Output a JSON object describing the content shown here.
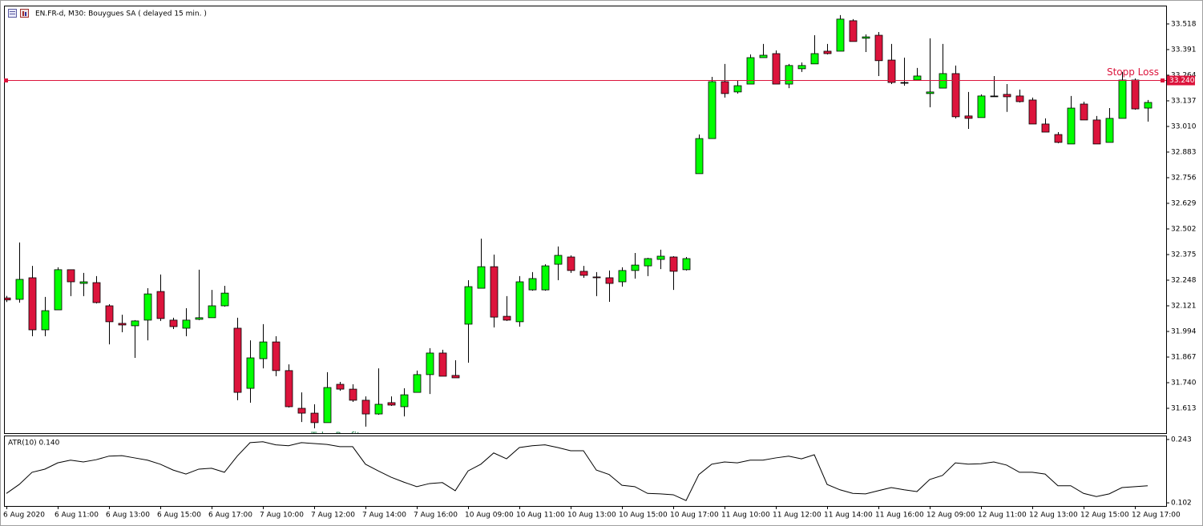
{
  "chart_data": [
    {
      "type": "candlestick",
      "title": "EN.FR-d, M30:  Bouygues SA ( delayed 15 min. )",
      "categories": [
        "6 Aug 2020",
        null,
        null,
        null,
        "6 Aug 11:00",
        null,
        null,
        null,
        "6 Aug 13:00",
        null,
        null,
        null,
        "6 Aug 15:00",
        null,
        null,
        null,
        "6 Aug 17:00",
        null,
        null,
        null,
        "7 Aug 10:00",
        null,
        null,
        null,
        "7 Aug 12:00",
        null,
        null,
        null,
        "7 Aug 14:00",
        null,
        null,
        null,
        "7 Aug 16:00",
        null,
        null,
        null,
        "10 Aug 09:00",
        null,
        null,
        null,
        "10 Aug 11:00",
        null,
        null,
        null,
        "10 Aug 13:00",
        null,
        null,
        null,
        "10 Aug 15:00",
        null,
        null,
        null,
        "10 Aug 17:00",
        null,
        null,
        null,
        "11 Aug 10:00",
        null,
        null,
        null,
        "11 Aug 12:00",
        null,
        null,
        null,
        "11 Aug 14:00",
        null,
        null,
        null,
        "11 Aug 16:00",
        null,
        null,
        null,
        "12 Aug 09:00",
        null,
        null,
        null,
        "12 Aug 11:00",
        null,
        null,
        null,
        "12 Aug 13:00",
        null,
        null,
        null,
        "12 Aug 15:00",
        null,
        null,
        null,
        "12 Aug 17:00",
        null
      ],
      "open": [
        32.16,
        32.153,
        32.26,
        32.002,
        32.101,
        32.3,
        32.232,
        32.236,
        32.121,
        32.034,
        32.022,
        32.05,
        32.192,
        32.05,
        32.01,
        32.054,
        32.062,
        32.121,
        32.01,
        31.712,
        31.859,
        31.942,
        31.8,
        31.613,
        31.589,
        31.542,
        31.732,
        31.708,
        31.653,
        31.585,
        31.641,
        31.621,
        31.692,
        31.78,
        31.887,
        31.776,
        32.03,
        32.208,
        32.315,
        32.069,
        32.042,
        32.2,
        32.2,
        32.327,
        32.363,
        32.292,
        32.264,
        32.26,
        32.24,
        32.296,
        32.319,
        32.351,
        32.363,
        32.3,
        32.776,
        32.95,
        33.232,
        33.181,
        33.22,
        33.351,
        33.371,
        33.22,
        33.296,
        33.32,
        33.383,
        33.383,
        33.534,
        33.447,
        33.462,
        33.339,
        33.228,
        33.24,
        33.173,
        33.2,
        33.272,
        33.062,
        33.054,
        33.161,
        33.169,
        33.161,
        33.141,
        33.022,
        32.97,
        32.923,
        33.121,
        33.042,
        32.931,
        33.05,
        33.24,
        33.101
      ],
      "high": [
        32.17,
        32.435,
        32.319,
        32.165,
        32.312,
        32.3,
        32.284,
        32.268,
        32.129,
        32.077,
        32.05,
        32.208,
        32.276,
        32.062,
        32.109,
        32.3,
        32.2,
        32.22,
        32.062,
        31.95,
        32.03,
        31.97,
        31.831,
        31.692,
        31.633,
        31.792,
        31.744,
        31.732,
        31.672,
        31.811,
        31.672,
        31.712,
        31.8,
        31.911,
        31.903,
        31.851,
        32.248,
        32.454,
        32.375,
        32.169,
        32.268,
        32.288,
        32.327,
        32.415,
        32.371,
        32.319,
        32.288,
        32.296,
        32.312,
        32.383,
        32.359,
        32.399,
        32.367,
        32.363,
        32.97,
        33.256,
        33.32,
        33.24,
        33.367,
        33.419,
        33.387,
        33.32,
        33.327,
        33.462,
        33.419,
        33.562,
        33.542,
        33.466,
        33.478,
        33.419,
        33.351,
        33.3,
        33.447,
        33.419,
        33.312,
        33.181,
        33.169,
        33.26,
        33.22,
        33.193,
        33.153,
        33.05,
        32.982,
        33.161,
        33.133,
        33.062,
        33.101,
        33.28,
        33.248,
        33.141
      ],
      "low": [
        32.14,
        32.137,
        31.97,
        31.97,
        32.101,
        32.169,
        32.169,
        32.133,
        31.93,
        31.99,
        31.863,
        31.95,
        32.046,
        32.006,
        31.97,
        32.05,
        32.062,
        32.117,
        31.653,
        31.641,
        31.811,
        31.772,
        31.617,
        31.545,
        31.514,
        31.542,
        31.7,
        31.645,
        31.522,
        31.581,
        31.625,
        31.573,
        31.692,
        31.684,
        31.772,
        31.764,
        31.839,
        32.208,
        32.014,
        32.046,
        32.018,
        32.196,
        32.196,
        32.248,
        32.284,
        32.26,
        32.169,
        32.141,
        32.216,
        32.256,
        32.268,
        32.303,
        32.2,
        32.296,
        32.776,
        32.95,
        33.153,
        33.173,
        33.22,
        33.351,
        33.22,
        33.2,
        33.28,
        33.32,
        33.367,
        33.383,
        33.431,
        33.379,
        33.26,
        33.22,
        33.212,
        33.24,
        33.105,
        33.2,
        33.05,
        32.998,
        33.054,
        33.157,
        33.082,
        33.129,
        33.022,
        32.982,
        32.927,
        32.923,
        33.042,
        32.923,
        32.931,
        33.05,
        33.093,
        33.034
      ],
      "close": [
        32.15,
        32.252,
        32.002,
        32.097,
        32.3,
        32.24,
        32.24,
        32.137,
        32.042,
        32.026,
        32.046,
        32.18,
        32.058,
        32.018,
        32.05,
        32.062,
        32.121,
        32.184,
        31.692,
        31.863,
        31.942,
        31.8,
        31.621,
        31.589,
        31.542,
        31.716,
        31.708,
        31.653,
        31.585,
        31.633,
        31.629,
        31.68,
        31.78,
        31.887,
        31.772,
        31.764,
        32.216,
        32.315,
        32.065,
        32.05,
        32.24,
        32.256,
        32.319,
        32.371,
        32.296,
        32.272,
        32.26,
        32.232,
        32.296,
        32.323,
        32.355,
        32.367,
        32.292,
        32.355,
        32.95,
        33.232,
        33.173,
        33.212,
        33.351,
        33.363,
        33.22,
        33.312,
        33.312,
        33.371,
        33.371,
        33.542,
        33.431,
        33.454,
        33.336,
        33.228,
        33.228,
        33.26,
        33.181,
        33.272,
        33.058,
        33.05,
        33.161,
        33.161,
        33.157,
        33.133,
        33.022,
        32.982,
        32.931,
        33.101,
        33.042,
        32.923,
        33.05,
        33.24,
        33.097,
        33.129
      ],
      "up_color": "#00ff00",
      "down_color": "#dc143c",
      "doji_color": "#000000",
      "ylim": [
        31.49,
        33.605
      ],
      "yticks": [
        33.518,
        33.391,
        33.264,
        33.137,
        {
          "value": 33.01,
          "label": "33.010"
        },
        32.883,
        32.756,
        32.629,
        32.502,
        32.375,
        32.248,
        32.121,
        31.994,
        31.867,
        {
          "value": 31.74,
          "label": "31.740"
        },
        31.613
      ],
      "levels": [
        {
          "name": "Stopp Loss",
          "value": 33.24,
          "value_label": "33.240",
          "color": "#dc143c"
        }
      ],
      "annotations": [
        {
          "text": "Take Profit",
          "color": "#2e8b57"
        }
      ]
    },
    {
      "type": "line",
      "label": "ATR(10) 0.140",
      "color": "#000000",
      "values": [
        0.123,
        0.143,
        0.17,
        0.177,
        0.191,
        0.197,
        0.193,
        0.198,
        0.206,
        0.207,
        0.202,
        0.197,
        0.188,
        0.175,
        0.166,
        0.177,
        0.179,
        0.17,
        0.206,
        0.236,
        0.238,
        0.231,
        0.229,
        0.236,
        0.234,
        0.232,
        0.227,
        0.227,
        0.188,
        0.173,
        0.159,
        0.148,
        0.138,
        0.145,
        0.147,
        0.129,
        0.173,
        0.188,
        0.213,
        0.2,
        0.225,
        0.229,
        0.231,
        0.225,
        0.218,
        0.218,
        0.175,
        0.165,
        0.141,
        0.138,
        0.123,
        0.122,
        0.12,
        0.107,
        0.165,
        0.188,
        0.193,
        0.191,
        0.197,
        0.197,
        0.202,
        0.206,
        0.2,
        0.209,
        0.143,
        0.131,
        0.123,
        0.122,
        0.129,
        0.136,
        0.131,
        0.127,
        0.154,
        0.163,
        0.191,
        0.188,
        0.189,
        0.193,
        0.186,
        0.17,
        0.17,
        0.166,
        0.14,
        0.14,
        0.123,
        0.116,
        0.122,
        0.136,
        0.138,
        0.14
      ],
      "ylim": [
        0.095,
        0.25
      ],
      "yticks": [
        0.243,
        0.102
      ]
    }
  ]
}
